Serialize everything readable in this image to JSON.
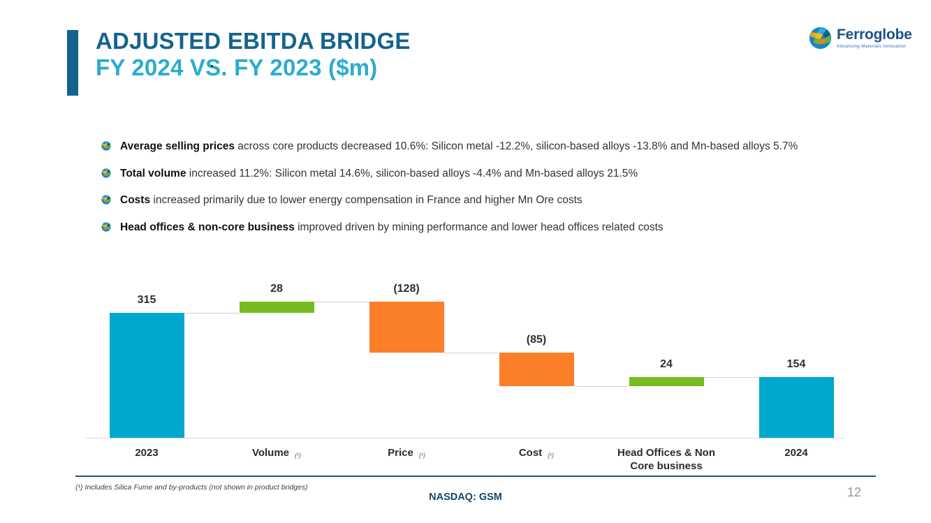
{
  "slide": {
    "title_line1": "ADJUSTED EBITDA BRIDGE",
    "title_line2": "FY 2024 VS. FY 2023 ($m)",
    "footnote": "(¹) Includes Silica Fume and by-products (not shown in product bridges)",
    "ticker": "NASDAQ: GSM",
    "page_number": "12",
    "colors": {
      "title_dark": "#15638D",
      "title_light": "#2BACCE",
      "footer_line": "#1D5A7A"
    }
  },
  "logo": {
    "name": "Ferroglobe",
    "tagline": "Advancing Materials Innovation",
    "icon": "globe-icon"
  },
  "icons": {
    "bullet": "globe-icon"
  },
  "bullets": [
    {
      "lead": "Average selling prices",
      "rest": " across core products decreased 10.6%: Silicon metal -12.2%, silicon-based alloys -13.8% and Mn-based alloys 5.7%"
    },
    {
      "lead": "Total volume",
      "rest": " increased 11.2%: Silicon metal 14.6%, silicon-based alloys -4.4% and Mn-based alloys 21.5%"
    },
    {
      "lead": "Costs",
      "rest": " increased primarily due to lower energy compensation in France and higher Mn Ore costs"
    },
    {
      "lead": "Head offices & non-core business",
      "rest": " improved driven by mining performance and lower head offices related costs"
    }
  ],
  "chart_data": {
    "type": "bar",
    "subtype": "waterfall",
    "categories": [
      "2023",
      "Volume",
      "Price",
      "Cost",
      "Head Offices & Non Core business",
      "2024"
    ],
    "steps": [
      {
        "label": "2023",
        "value": 315,
        "display": "315",
        "kind": "total",
        "footnote": false
      },
      {
        "label": "Volume",
        "value": 28,
        "display": "28",
        "kind": "increase",
        "footnote": true
      },
      {
        "label": "Price",
        "value": -128,
        "display": "(128)",
        "kind": "decrease",
        "footnote": true
      },
      {
        "label": "Cost",
        "value": -85,
        "display": "(85)",
        "kind": "decrease",
        "footnote": true
      },
      {
        "label": "Head Offices & Non Core business",
        "value": 24,
        "display": "24",
        "kind": "increase",
        "footnote": false
      },
      {
        "label": "2024",
        "value": 154,
        "display": "154",
        "kind": "total",
        "footnote": false
      }
    ],
    "running_totals": [
      315,
      343,
      215,
      130,
      154,
      154
    ],
    "ylim": [
      0,
      360
    ],
    "grid": false,
    "legend": false,
    "footnote_marker": "(¹)",
    "colors": {
      "total": "#00A8CE",
      "increase": "#76BC21",
      "decrease": "#FB7E28"
    }
  }
}
